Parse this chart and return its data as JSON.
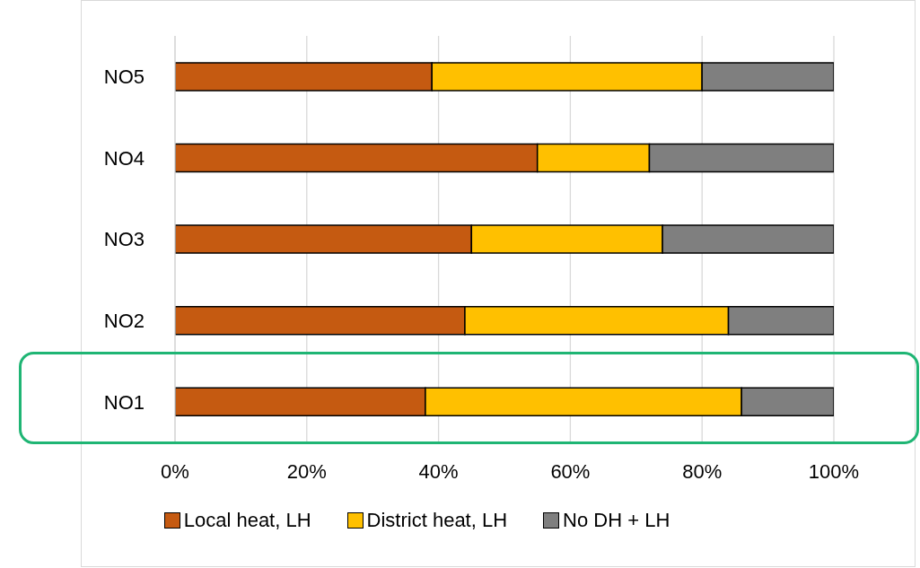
{
  "chart_data": {
    "type": "bar",
    "orientation": "horizontal",
    "stacked": true,
    "categories": [
      "NO5",
      "NO4",
      "NO3",
      "NO2",
      "NO1"
    ],
    "series": [
      {
        "name": "Local heat, LH",
        "color": "#c55a11",
        "values": [
          39,
          55,
          45,
          44,
          38
        ]
      },
      {
        "name": "District heat, LH",
        "color": "#ffc000",
        "values": [
          41,
          17,
          29,
          40,
          48
        ]
      },
      {
        "name": "No DH + LH",
        "color": "#7f7f7f",
        "values": [
          20,
          28,
          26,
          16,
          14
        ]
      }
    ],
    "xlim": [
      0,
      100
    ],
    "xticks": [
      {
        "value": 0,
        "label": "0%"
      },
      {
        "value": 20,
        "label": "20%"
      },
      {
        "value": 40,
        "label": "40%"
      },
      {
        "value": 60,
        "label": "60%"
      },
      {
        "value": 80,
        "label": "80%"
      },
      {
        "value": 100,
        "label": "100%"
      }
    ],
    "grid": "x",
    "legend": "bottom"
  }
}
